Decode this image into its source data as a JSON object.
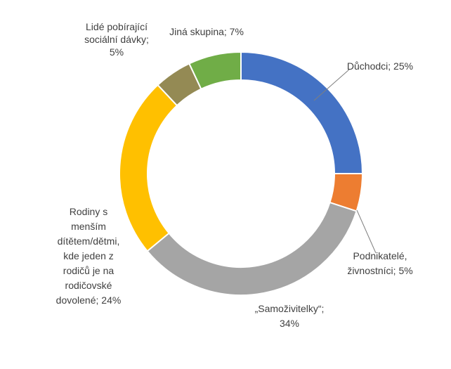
{
  "chart_data": {
    "type": "pie",
    "variant": "donut",
    "title": "",
    "categories": [
      "Důchodci",
      "Podnikatelé, živnostníci",
      "„Samoživitelky“",
      "Rodiny s menším dítětem/dětmi, kde jeden z rodičů je na rodičovské dovolené",
      "Lidé pobírající sociální dávky",
      "Jiná skupina"
    ],
    "values": [
      25,
      5,
      34,
      24,
      5,
      7
    ],
    "colors": [
      "#4472C4",
      "#ED7D31",
      "#A5A5A5",
      "#FFC000",
      "#948A54",
      "#70AD47"
    ],
    "labels": [
      [
        "Důchodci; 25%"
      ],
      [
        "Podnikatelé,",
        "živnostníci; 5%"
      ],
      [
        "„Samoživitelky“;",
        "34%"
      ],
      [
        "Rodiny s",
        "menším",
        "dítětem/dětmi,",
        "kde jeden z",
        "rodičů je na",
        "rodičovské",
        "dovolené; 24%"
      ],
      [
        "Lidé pobírající",
        "sociální dávky;",
        "5%"
      ],
      [
        "Jiná skupina; 7%"
      ]
    ]
  }
}
